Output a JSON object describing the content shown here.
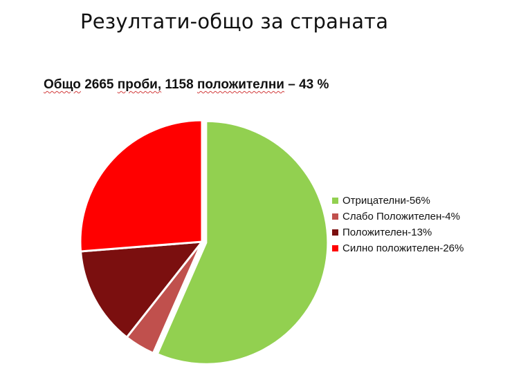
{
  "title": "Резултати-общо за страната",
  "subtitle": {
    "total_word": "Общо",
    "total_samples": "2665",
    "samples_word": "проби,",
    "positive_count": "1158",
    "positive_word": "положителни",
    "positive_pct": "– 43 %"
  },
  "chart_data": {
    "type": "pie",
    "labels": [
      "Отрицателни-56%",
      "Слабо Положителен-4%",
      "Положителен-13%",
      "Силно положителен-26%"
    ],
    "values": [
      56,
      4,
      13,
      26
    ],
    "colors": [
      "#92d050",
      "#c0504d",
      "#7b0f0f",
      "#ff0000"
    ],
    "exploded_slice": "Отрицателни-56%",
    "legend_position": "right"
  }
}
